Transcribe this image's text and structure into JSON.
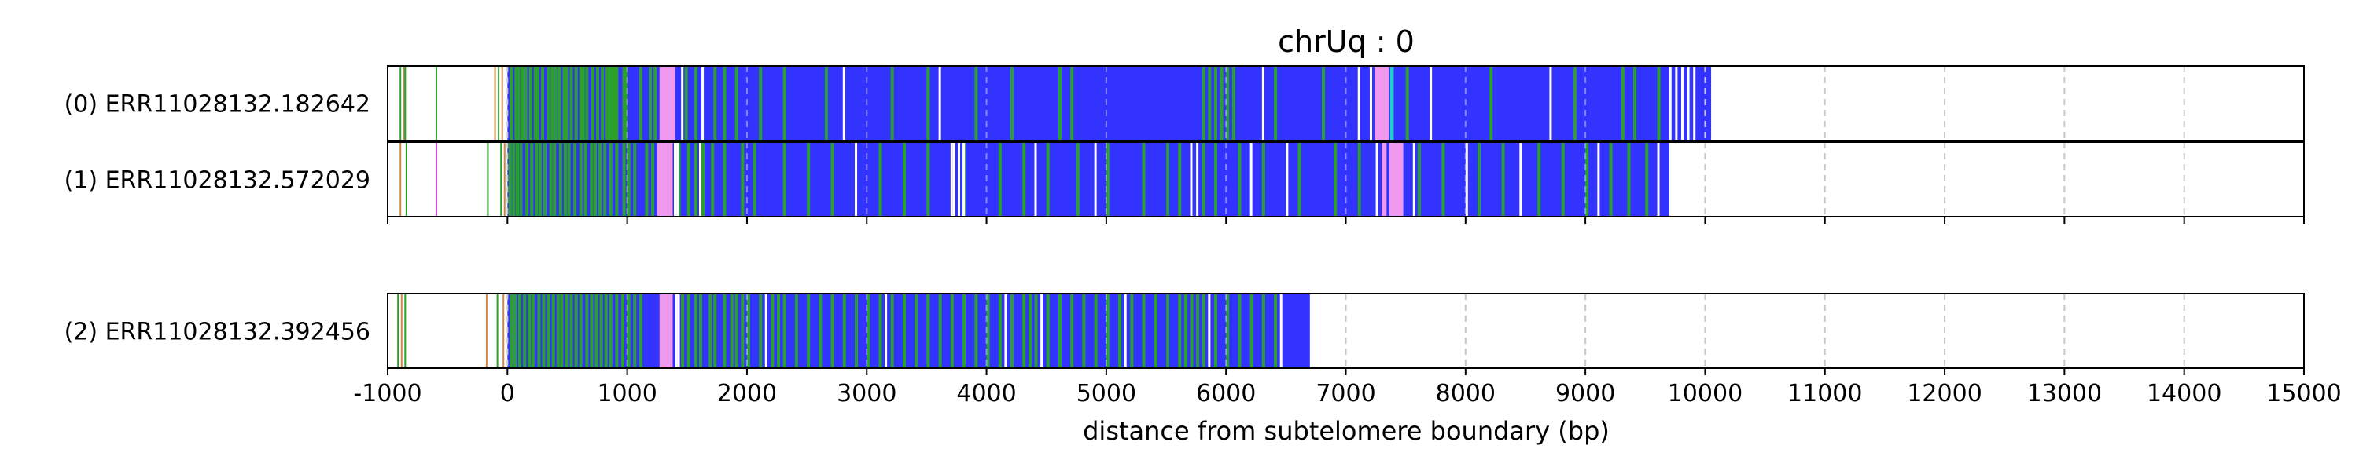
{
  "chart_data": {
    "type": "heatmap",
    "title": "chrUq : 0",
    "xlabel": "distance from subtelomere boundary (bp)",
    "xlim": [
      -1000,
      15000
    ],
    "xticks": [
      "-1000",
      "0",
      "1000",
      "2000",
      "3000",
      "4000",
      "5000",
      "6000",
      "7000",
      "8000",
      "9000",
      "10000",
      "11000",
      "12000",
      "13000",
      "14000",
      "15000"
    ],
    "grid": "vertical dashed",
    "colors": {
      "main": "#3333ff",
      "green": "#2ca02c",
      "pink": "#ee99ee",
      "cyan": "#22cccc",
      "white_gap": "#ffffff",
      "grid": "#c8c8c8"
    },
    "reads": [
      {
        "label": "(0) ERR11028132.182642",
        "start": -1000,
        "end": 10050,
        "main_start": 0,
        "main_end": 10000,
        "pre_marks": [
          {
            "x": -900,
            "color": "#2ca02c"
          },
          {
            "x": -870,
            "color": "#cc8844"
          },
          {
            "x": -860,
            "color": "#2ca02c"
          },
          {
            "x": -600,
            "color": "#2ca02c"
          },
          {
            "x": -110,
            "color": "#cc8844"
          },
          {
            "x": -80,
            "color": "#2ca02c"
          },
          {
            "x": -50,
            "color": "#cc8844"
          }
        ],
        "segments": [
          {
            "from": 1270,
            "to": 1400,
            "color": "#ee99ee"
          },
          {
            "from": 7240,
            "to": 7360,
            "color": "#ee99ee"
          },
          {
            "from": 7370,
            "to": 7400,
            "color": "#22cccc"
          },
          {
            "from": 9980,
            "to": 10050,
            "color": "#3333ff"
          }
        ],
        "green_marks": [
          20,
          60,
          80,
          110,
          140,
          180,
          220,
          240,
          280,
          330,
          360,
          390,
          420,
          460,
          480,
          520,
          560,
          600,
          620,
          650,
          700,
          740,
          780,
          820,
          840,
          860,
          880,
          900,
          960,
          980,
          1100,
          1180,
          1220,
          1480,
          1560,
          1720,
          1800,
          1900,
          2100,
          2300,
          2650,
          3200,
          3500,
          3900,
          4200,
          4600,
          4700,
          5800,
          5850,
          5900,
          5950,
          6000,
          6050,
          6400,
          6800,
          7500,
          8200,
          8900,
          9300,
          9400,
          9600
        ],
        "white_marks": [
          1450,
          1620,
          2800,
          3600,
          6300,
          7100,
          7200,
          7700,
          8700,
          9700,
          9750,
          9800,
          9850,
          9900
        ]
      },
      {
        "label": "(1) ERR11028132.572029",
        "start": -1000,
        "end": 9700,
        "main_start": 0,
        "main_end": 9700,
        "pre_marks": [
          {
            "x": -900,
            "color": "#cc8844"
          },
          {
            "x": -850,
            "color": "#2ca02c"
          },
          {
            "x": -600,
            "color": "#cc44cc"
          },
          {
            "x": -170,
            "color": "#2ca02c"
          },
          {
            "x": -60,
            "color": "#2ca02c"
          },
          {
            "x": -30,
            "color": "#cc8844"
          }
        ],
        "segments": [
          {
            "from": 1250,
            "to": 1380,
            "color": "#ee99ee"
          },
          {
            "from": 7300,
            "to": 7480,
            "color": "#ee99ee"
          },
          {
            "from": 7340,
            "to": 7360,
            "color": "#3333ff"
          }
        ],
        "green_marks": [
          10,
          40,
          70,
          100,
          150,
          190,
          230,
          260,
          300,
          350,
          380,
          430,
          470,
          500,
          550,
          600,
          640,
          690,
          720,
          760,
          800,
          850,
          900,
          960,
          1000,
          1050,
          1150,
          1200,
          1420,
          1500,
          1560,
          1620,
          1700,
          1800,
          1950,
          2050,
          2300,
          2500,
          2700,
          3100,
          3300,
          3500,
          3800,
          4100,
          4300,
          4500,
          4750,
          5000,
          5300,
          5500,
          5600,
          5800,
          5900,
          6100,
          6300,
          6600,
          6900,
          7100,
          7600,
          7800,
          8100,
          8300,
          8600,
          8800,
          9000,
          9200,
          9350,
          9500
        ],
        "white_marks": [
          1390,
          1410,
          1600,
          2900,
          3700,
          3720,
          3760,
          3800,
          4400,
          4900,
          5700,
          5750,
          6200,
          6500,
          7250,
          7560,
          8000,
          8450,
          9100,
          9600
        ]
      },
      {
        "label": "(2) ERR11028132.392456",
        "start": -1000,
        "end": 6700,
        "main_start": 0,
        "main_end": 6700,
        "pre_marks": [
          {
            "x": -920,
            "color": "#2ca02c"
          },
          {
            "x": -890,
            "color": "#cc8844"
          },
          {
            "x": -860,
            "color": "#2ca02c"
          },
          {
            "x": -180,
            "color": "#cc8844"
          },
          {
            "x": -90,
            "color": "#2ca02c"
          },
          {
            "x": -40,
            "color": "#cc8844"
          }
        ],
        "segments": [
          {
            "from": 1270,
            "to": 1380,
            "color": "#ee99ee"
          }
        ],
        "green_marks": [
          20,
          50,
          90,
          130,
          170,
          200,
          250,
          290,
          330,
          370,
          410,
          440,
          480,
          520,
          560,
          600,
          650,
          690,
          730,
          770,
          810,
          850,
          900,
          950,
          1000,
          1050,
          1100,
          1450,
          1500,
          1560,
          1600,
          1680,
          1720,
          1800,
          1860,
          1900,
          1950,
          2000,
          2100,
          2200,
          2250,
          2300,
          2400,
          2500,
          2600,
          2700,
          2800,
          2900,
          3000,
          3100,
          3200,
          3300,
          3400,
          3500,
          3600,
          3700,
          3800,
          3900,
          4000,
          4100,
          4200,
          4300,
          4350,
          4400,
          4500,
          4600,
          4700,
          4800,
          4900,
          5000,
          5100,
          5200,
          5300,
          5400,
          5500,
          5600,
          5650,
          5700,
          5750,
          5800,
          5900,
          6000,
          6100,
          6200,
          6300,
          6400
        ],
        "white_marks": [
          1400,
          1420,
          2150,
          3150,
          4150,
          4450,
          5150,
          5850,
          6450
        ]
      }
    ]
  }
}
